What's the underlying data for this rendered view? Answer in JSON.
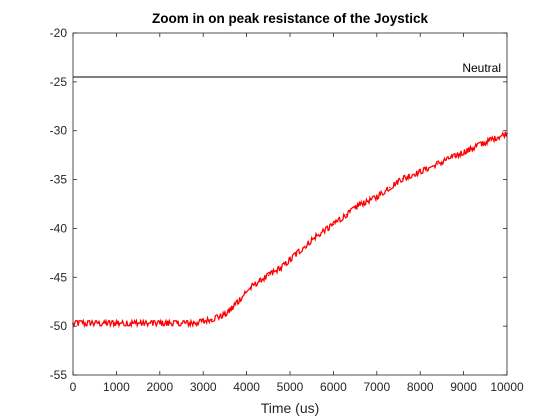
{
  "chart_data": {
    "type": "line",
    "title": "Zoom in on peak resistance of the Joystick",
    "xlabel": "Time (us)",
    "ylabel": "",
    "xlim": [
      0,
      10000
    ],
    "ylim": [
      -55,
      -20
    ],
    "x_ticks": [
      0,
      1000,
      2000,
      3000,
      4000,
      5000,
      6000,
      7000,
      8000,
      9000,
      10000
    ],
    "y_ticks": [
      -20,
      -25,
      -30,
      -35,
      -40,
      -45,
      -50,
      -55
    ],
    "x_tick_labels": [
      "0",
      "1000",
      "2000",
      "3000",
      "4000",
      "5000",
      "6000",
      "7000",
      "8000",
      "9000",
      "10000"
    ],
    "y_tick_labels": [
      "-20",
      "-25",
      "-30",
      "-35",
      "-40",
      "-45",
      "-50",
      "-55"
    ],
    "grid": false,
    "series": [
      {
        "color": "#ff0000",
        "style": "noisy-line",
        "x": [
          0,
          500,
          1000,
          1500,
          2000,
          2500,
          2800,
          3000,
          3200,
          3500,
          3700,
          3900,
          4100,
          4300,
          4500,
          4800,
          5000,
          5300,
          5600,
          6000,
          6300,
          6600,
          7000,
          7300,
          7600,
          8000,
          8400,
          8800,
          9200,
          9600,
          10000
        ],
        "y": [
          -49.7,
          -49.7,
          -49.7,
          -49.7,
          -49.7,
          -49.7,
          -49.7,
          -49.5,
          -49.3,
          -48.8,
          -48.0,
          -47.0,
          -46.0,
          -45.4,
          -44.8,
          -44.0,
          -43.2,
          -42.0,
          -40.8,
          -39.6,
          -38.6,
          -37.6,
          -36.8,
          -35.8,
          -34.9,
          -34.2,
          -33.4,
          -32.6,
          -31.8,
          -31.0,
          -30.3
        ]
      },
      {
        "color": "#000000",
        "style": "solid",
        "x": [
          0,
          10000
        ],
        "y": [
          -24.5,
          -24.5
        ]
      }
    ],
    "annotations": [
      {
        "text": "Neutral",
        "x": 10000,
        "y": -24.5
      }
    ]
  }
}
